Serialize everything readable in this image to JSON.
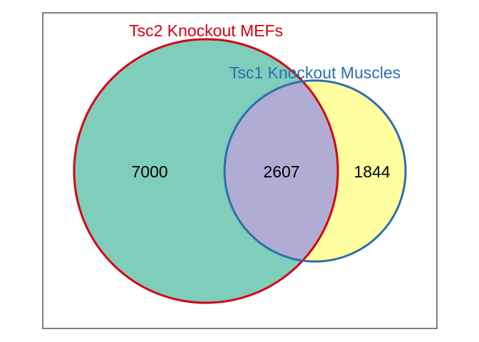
{
  "venn": {
    "sets": [
      {
        "id": "tsc2",
        "name": "Tsc2 Knockout MEFs",
        "fill_color": "#7FCDBB",
        "stroke_color": "#D7000F",
        "label_color": "#D7000F"
      },
      {
        "id": "tsc1",
        "name": "Tsc1 Knockout Muscles",
        "fill_color": "#FFFFA0",
        "stroke_color": "#2C6FAE",
        "label_color": "#2C6FAE"
      }
    ],
    "overlap_fill_color": "#B0ACD3",
    "counts": {
      "tsc2_only": "7000",
      "both": "2607",
      "tsc1_only": "1844"
    }
  }
}
